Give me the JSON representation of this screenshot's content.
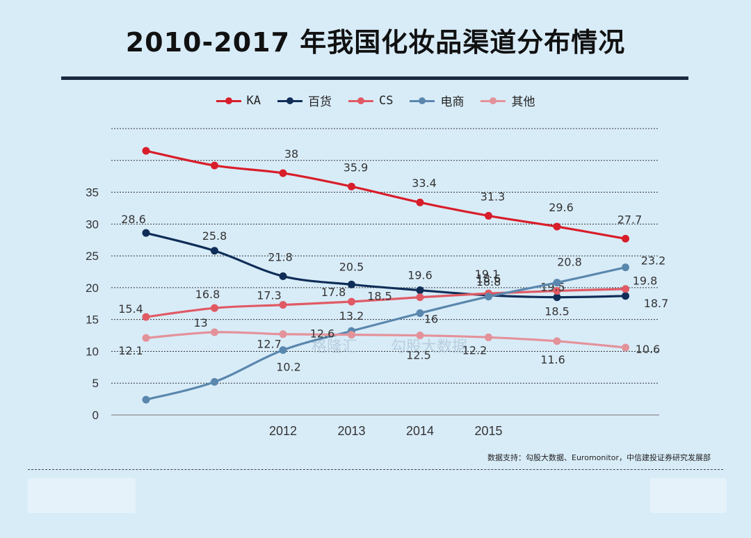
{
  "title": "2010-2017 年我国化妆品渠道分布情况",
  "source": "数据支持：勾股大数据、Euromonitor，中信建投证券研究发展部",
  "watermarks": [
    "格隆汇",
    "勾股大数据"
  ],
  "legend": [
    {
      "name": "KA",
      "color": "#d81e2a"
    },
    {
      "name": "百货",
      "color": "#0f2d57"
    },
    {
      "name": "CS",
      "color": "#e05a64"
    },
    {
      "name": "电商",
      "color": "#5a87ad"
    },
    {
      "name": "其他",
      "color": "#e4929a"
    }
  ],
  "chart_data": {
    "type": "line",
    "categories": [
      "",
      "",
      "2012",
      "2013",
      "2014",
      "2015",
      "",
      ""
    ],
    "ylim": [
      0,
      45
    ],
    "yticks": [
      "0",
      "5",
      "10",
      "15",
      "20",
      "25",
      "30",
      "35",
      "",
      ""
    ],
    "grid": true,
    "legend_position": "top",
    "series": [
      {
        "name": "KA",
        "color": "#d81e2a",
        "values": [
          41.5,
          39.2,
          38,
          35.9,
          33.4,
          31.3,
          29.6,
          27.7
        ],
        "labels": [
          "",
          "",
          "38",
          "35.9",
          "33.4",
          "31.3",
          "29.6",
          "27.7"
        ]
      },
      {
        "name": "百货",
        "color": "#0f2d57",
        "values": [
          28.6,
          25.8,
          21.8,
          20.5,
          19.6,
          18.8,
          18.5,
          18.7
        ],
        "labels": [
          "28.6",
          "25.8",
          "21.8",
          "20.5",
          "19.6",
          "18.8",
          "18.5",
          "18.7"
        ]
      },
      {
        "name": "CS",
        "color": "#e05a64",
        "values": [
          15.4,
          16.8,
          17.3,
          17.8,
          18.5,
          19.1,
          19.5,
          19.8
        ],
        "labels": [
          "15.4",
          "16.8",
          "17.3",
          "17.8",
          "18.5",
          "19.1",
          "19.5",
          "19.8"
        ]
      },
      {
        "name": "电商",
        "color": "#5a87ad",
        "values": [
          2.4,
          5.2,
          10.2,
          13.2,
          16,
          18.6,
          20.8,
          23.2
        ],
        "labels": [
          "",
          "",
          "10.2",
          "13.2",
          "16",
          "18.6",
          "20.8",
          "23.2"
        ]
      },
      {
        "name": "其他",
        "color": "#e4929a",
        "values": [
          12.1,
          13,
          12.7,
          12.6,
          12.5,
          12.2,
          11.6,
          10.6
        ],
        "labels": [
          "12.1",
          "13",
          "12.7",
          "12.6",
          "12.5",
          "12.2",
          "11.6",
          "10.6"
        ]
      }
    ]
  }
}
